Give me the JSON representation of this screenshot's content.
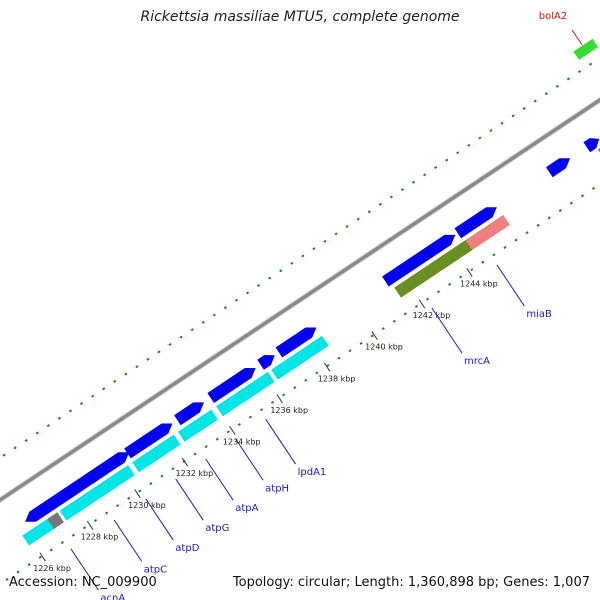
{
  "title": "Rickettsia massiliae MTU5, complete genome",
  "footer": {
    "accession": "Accession: NC_009900",
    "topology": "Topology: circular; Length: 1,360,898 bp; Genes: 1,007"
  },
  "colors": {
    "cds": "#0000ee",
    "rrna_trna": "#00e5e5",
    "olive": "#6b8e23",
    "salmon": "#f08080",
    "gray": "#777777",
    "slate": "#3d3d8a",
    "green": "#33dd33",
    "label_blue": "#1a1acc",
    "label_red": "#dd1111"
  },
  "tick_labels": [
    "1226 kbp",
    "1228 kbp",
    "1230 kbp",
    "1232 kbp",
    "1234 kbp",
    "1236 kbp",
    "1238 kbp",
    "1240 kbp",
    "1242 kbp",
    "1244 kbp"
  ],
  "gene_labels": [
    {
      "name": "acnA",
      "color": "label_blue"
    },
    {
      "name": "atpC",
      "color": "label_blue"
    },
    {
      "name": "atpD",
      "color": "label_blue"
    },
    {
      "name": "atpG",
      "color": "label_blue"
    },
    {
      "name": "atpA",
      "color": "label_blue"
    },
    {
      "name": "atpH",
      "color": "label_blue"
    },
    {
      "name": "lpdA1",
      "color": "label_blue"
    },
    {
      "name": "mrcA",
      "color": "label_blue"
    },
    {
      "name": "miaB",
      "color": "label_blue"
    },
    {
      "name": "bolA2",
      "color": "label_red"
    }
  ]
}
